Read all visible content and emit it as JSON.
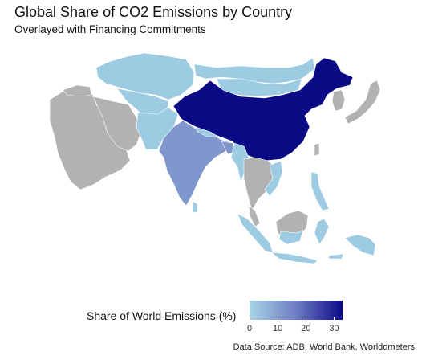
{
  "header": {
    "title": "Global Share of CO2 Emissions by Country",
    "subtitle": "Overlayed with Financing Commitments"
  },
  "legend": {
    "title": "Share of World Emissions (%)",
    "ticks": [
      "0",
      "10",
      "20",
      "30"
    ],
    "tick_values": [
      0,
      10,
      20,
      30
    ],
    "range": [
      0,
      33
    ],
    "color_low": "#a7d3e6",
    "color_high": "#0a0a86"
  },
  "caption": "Data Source: ADB, World Bank, Worldometers",
  "colors": {
    "no_data": "#b2b2b2",
    "low": "#9ccbe2",
    "mid": "#7f97cc",
    "high": "#090a84",
    "border": "#ffffff"
  }
}
